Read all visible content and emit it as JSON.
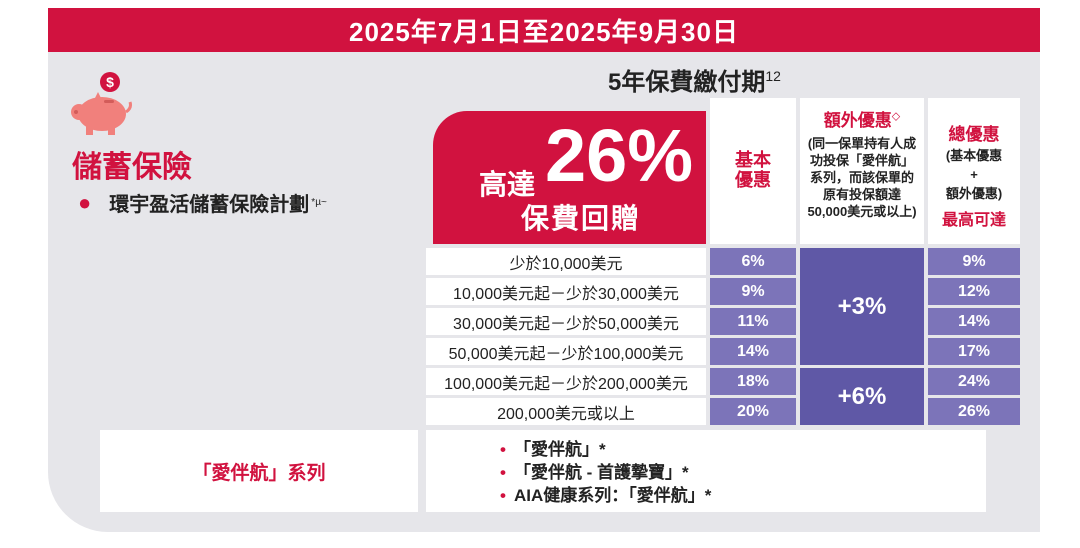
{
  "banner": "2025年7月1日至2025年9月30日",
  "payment_period": {
    "label": "5年保費繳付期",
    "note": "12"
  },
  "category": {
    "title": "儲蓄保險",
    "product": "環宇盈活儲蓄保險計劃",
    "product_marks": "*µ~",
    "icon": "piggy-bank-icon"
  },
  "promo": {
    "prefix": "高達",
    "percent": "26%",
    "text": "保費回贈"
  },
  "headers": {
    "basic": "基本優惠",
    "extra_title": "額外優惠",
    "extra_mark": "◇",
    "extra_desc": "(同一保單持有人成功投保「愛伴航」系列，而該保單的原有投保額達50,000美元或以上)",
    "total_title": "總優惠",
    "total_desc1": "(基本優惠",
    "total_plus": "+",
    "total_desc2": "額外優惠)",
    "total_max": "最高可達"
  },
  "rows": [
    {
      "range": "少於10,000美元",
      "basic": "6%",
      "total": "9%"
    },
    {
      "range": "10,000美元起－少於30,000美元",
      "basic": "9%",
      "total": "12%"
    },
    {
      "range": "30,000美元起－少於50,000美元",
      "basic": "11%",
      "total": "14%"
    },
    {
      "range": "50,000美元起－少於100,000美元",
      "basic": "14%",
      "total": "17%"
    },
    {
      "range": "100,000美元起－少於200,000美元",
      "basic": "18%",
      "total": "24%"
    },
    {
      "range": "200,000美元或以上",
      "basic": "20%",
      "total": "26%"
    }
  ],
  "extra_groups": [
    "+3%",
    "+6%"
  ],
  "series": {
    "label": "「愛伴航」系列",
    "items": [
      "「愛伴航」*",
      "「愛伴航 - 首護摯寶」*",
      "AIA健康系列：「愛伴航」*"
    ]
  },
  "colors": {
    "brand_red": "#d1123f",
    "purple": "#7c74b9",
    "purple_dark": "#5f58a6",
    "panel_grey": "#e6e6ea"
  }
}
